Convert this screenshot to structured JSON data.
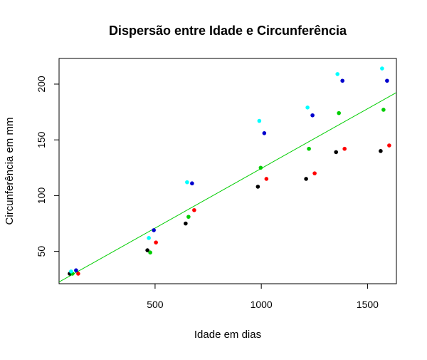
{
  "chart_data": {
    "type": "scatter",
    "title": "Dispersão entre Idade e Circunferência",
    "xlabel": "Idade em dias",
    "ylabel": "Circunferência em mm",
    "xlim": [
      48,
      1636
    ],
    "ylim": [
      21,
      223
    ],
    "x_ticks": [
      500,
      1000,
      1500
    ],
    "y_ticks": [
      50,
      100,
      150,
      200
    ],
    "grid": false,
    "legend": "none",
    "series": [
      {
        "color": "#000000",
        "points": [
          {
            "x": 118,
            "y": 30
          },
          {
            "x": 484,
            "y": 51
          },
          {
            "x": 664,
            "y": 75
          },
          {
            "x": 1004,
            "y": 108
          },
          {
            "x": 1231,
            "y": 115
          },
          {
            "x": 1372,
            "y": 139
          },
          {
            "x": 1582,
            "y": 140
          }
        ]
      },
      {
        "color": "#ff0000",
        "points": [
          {
            "x": 118,
            "y": 30
          },
          {
            "x": 484,
            "y": 58
          },
          {
            "x": 664,
            "y": 87
          },
          {
            "x": 1004,
            "y": 115
          },
          {
            "x": 1231,
            "y": 120
          },
          {
            "x": 1372,
            "y": 142
          },
          {
            "x": 1582,
            "y": 145
          }
        ]
      },
      {
        "color": "#00cd00",
        "points": [
          {
            "x": 118,
            "y": 30
          },
          {
            "x": 484,
            "y": 49
          },
          {
            "x": 664,
            "y": 81
          },
          {
            "x": 1004,
            "y": 125
          },
          {
            "x": 1231,
            "y": 142
          },
          {
            "x": 1372,
            "y": 174
          },
          {
            "x": 1582,
            "y": 177
          }
        ]
      },
      {
        "color": "#0000cd",
        "points": [
          {
            "x": 118,
            "y": 33
          },
          {
            "x": 484,
            "y": 69
          },
          {
            "x": 664,
            "y": 111
          },
          {
            "x": 1004,
            "y": 156
          },
          {
            "x": 1231,
            "y": 172
          },
          {
            "x": 1372,
            "y": 203
          },
          {
            "x": 1582,
            "y": 203
          }
        ]
      },
      {
        "color": "#00ffff",
        "points": [
          {
            "x": 118,
            "y": 32
          },
          {
            "x": 484,
            "y": 62
          },
          {
            "x": 664,
            "y": 112
          },
          {
            "x": 1004,
            "y": 167
          },
          {
            "x": 1231,
            "y": 179
          },
          {
            "x": 1372,
            "y": 209
          },
          {
            "x": 1582,
            "y": 214
          }
        ]
      }
    ],
    "regression_line": {
      "color": "#00cd00",
      "intercept": 17.4,
      "slope": 0.107
    }
  }
}
